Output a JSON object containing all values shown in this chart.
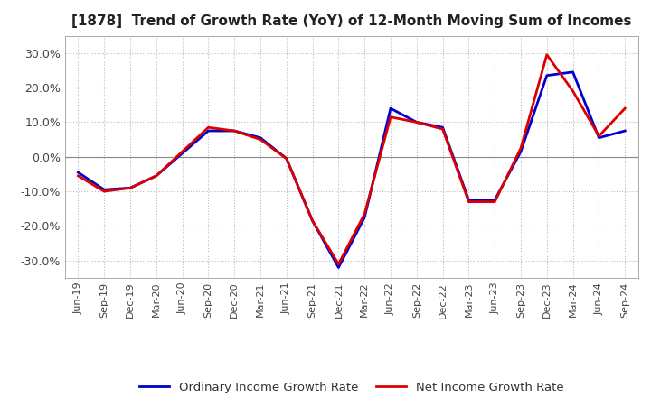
{
  "title": "[1878]  Trend of Growth Rate (YoY) of 12-Month Moving Sum of Incomes",
  "ylim": [
    -0.35,
    0.35
  ],
  "yticks": [
    -0.3,
    -0.2,
    -0.1,
    0.0,
    0.1,
    0.2,
    0.3
  ],
  "background_color": "#ffffff",
  "grid_color": "#bbbbbb",
  "line_color_ordinary": "#0000cc",
  "line_color_net": "#dd0000",
  "legend_ordinary": "Ordinary Income Growth Rate",
  "legend_net": "Net Income Growth Rate",
  "x_labels": [
    "Jun-19",
    "Sep-19",
    "Dec-19",
    "Mar-20",
    "Jun-20",
    "Sep-20",
    "Dec-20",
    "Mar-21",
    "Jun-21",
    "Sep-21",
    "Dec-21",
    "Mar-22",
    "Jun-22",
    "Sep-22",
    "Dec-22",
    "Mar-23",
    "Jun-23",
    "Sep-23",
    "Dec-23",
    "Mar-24",
    "Jun-24",
    "Sep-24"
  ],
  "ordinary_income_growth": [
    -0.045,
    -0.095,
    -0.09,
    -0.055,
    0.01,
    0.075,
    0.075,
    0.055,
    -0.005,
    -0.185,
    -0.32,
    -0.175,
    0.14,
    0.1,
    0.085,
    -0.125,
    -0.125,
    0.015,
    0.235,
    0.245,
    0.055,
    0.075
  ],
  "net_income_growth": [
    -0.055,
    -0.1,
    -0.09,
    -0.055,
    0.015,
    0.085,
    0.075,
    0.05,
    -0.005,
    -0.185,
    -0.31,
    -0.165,
    0.115,
    0.1,
    0.08,
    -0.13,
    -0.13,
    0.025,
    0.295,
    0.19,
    0.06,
    0.14
  ]
}
